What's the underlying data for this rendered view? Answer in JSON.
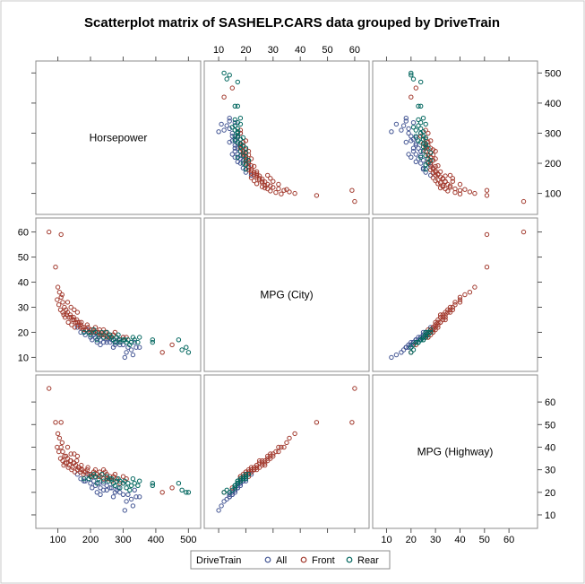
{
  "chart_data": {
    "type": "scatter-matrix",
    "title": "Scatterplot matrix of SASHELP.CARS data grouped by DriveTrain",
    "variables": [
      {
        "key": "hp",
        "label": "Horsepower",
        "range": [
          60,
          510
        ],
        "ticks": [
          100,
          200,
          300,
          400,
          500
        ]
      },
      {
        "key": "city",
        "label": "MPG (City)",
        "range": [
          8,
          62
        ],
        "ticks": [
          10,
          20,
          30,
          40,
          50,
          60
        ]
      },
      {
        "key": "hwy",
        "label": "MPG (Highway)",
        "range": [
          8,
          68
        ],
        "ticks": [
          10,
          20,
          30,
          40,
          50,
          60
        ]
      }
    ],
    "legend": {
      "title": "DriveTrain",
      "placement": "bottom-center",
      "entries": [
        {
          "name": "All",
          "color": "#445694"
        },
        {
          "name": "Front",
          "color": "#A23A2E"
        },
        {
          "name": "Rear",
          "color": "#01665E"
        }
      ]
    },
    "series": [
      {
        "name": "All",
        "color": "#445694",
        "points": [
          [
            340,
            14,
            18
          ],
          [
            300,
            15,
            19
          ],
          [
            280,
            16,
            21
          ],
          [
            265,
            17,
            22
          ],
          [
            250,
            16,
            21
          ],
          [
            230,
            17,
            22
          ],
          [
            215,
            18,
            23
          ],
          [
            200,
            18,
            24
          ],
          [
            184,
            19,
            25
          ],
          [
            170,
            20,
            26
          ],
          [
            220,
            16,
            20
          ],
          [
            325,
            13,
            17
          ],
          [
            310,
            12,
            16
          ],
          [
            275,
            15,
            20
          ],
          [
            260,
            16,
            22
          ],
          [
            240,
            18,
            24
          ],
          [
            210,
            19,
            25
          ],
          [
            195,
            20,
            26
          ],
          [
            315,
            14,
            19
          ],
          [
            290,
            15,
            20
          ],
          [
            330,
            11,
            14
          ],
          [
            305,
            10,
            12
          ],
          [
            250,
            17,
            23
          ],
          [
            225,
            18,
            24
          ],
          [
            190,
            21,
            28
          ],
          [
            350,
            14,
            18
          ],
          [
            335,
            16,
            21
          ],
          [
            160,
            22,
            28
          ],
          [
            205,
            17,
            22
          ],
          [
            270,
            14,
            18
          ],
          [
            300,
            18,
            24
          ],
          [
            180,
            20,
            25
          ],
          [
            240,
            16,
            21
          ],
          [
            285,
            17,
            22
          ],
          [
            230,
            15,
            19
          ]
        ]
      },
      {
        "name": "Front",
        "color": "#A23A2E",
        "points": [
          [
            73,
            60,
            66
          ],
          [
            93,
            46,
            51
          ],
          [
            110,
            59,
            51
          ],
          [
            100,
            38,
            46
          ],
          [
            110,
            34,
            40
          ],
          [
            105,
            36,
            44
          ],
          [
            115,
            32,
            38
          ],
          [
            120,
            30,
            36
          ],
          [
            125,
            29,
            36
          ],
          [
            130,
            28,
            35
          ],
          [
            140,
            26,
            34
          ],
          [
            150,
            25,
            33
          ],
          [
            155,
            24,
            32
          ],
          [
            160,
            24,
            30
          ],
          [
            170,
            23,
            30
          ],
          [
            180,
            22,
            29
          ],
          [
            200,
            21,
            28
          ],
          [
            210,
            21,
            29
          ],
          [
            220,
            20,
            28
          ],
          [
            230,
            19,
            27
          ],
          [
            240,
            19,
            26
          ],
          [
            250,
            18,
            26
          ],
          [
            260,
            18,
            27
          ],
          [
            270,
            19,
            27
          ],
          [
            280,
            18,
            26
          ],
          [
            300,
            18,
            27
          ],
          [
            115,
            28,
            34
          ],
          [
            127,
            27,
            33
          ],
          [
            135,
            26,
            32
          ],
          [
            145,
            25,
            31
          ],
          [
            165,
            24,
            31
          ],
          [
            175,
            22,
            30
          ],
          [
            185,
            21,
            29
          ],
          [
            195,
            20,
            28
          ],
          [
            205,
            21,
            27
          ],
          [
            215,
            22,
            30
          ],
          [
            225,
            20,
            27
          ],
          [
            235,
            19,
            28
          ],
          [
            245,
            20,
            29
          ],
          [
            255,
            19,
            26
          ],
          [
            420,
            12,
            20
          ],
          [
            450,
            15,
            22
          ],
          [
            103,
            31,
            38
          ],
          [
            108,
            29,
            35
          ],
          [
            118,
            27,
            32
          ],
          [
            132,
            24,
            31
          ],
          [
            142,
            23,
            30
          ],
          [
            152,
            22,
            29
          ],
          [
            162,
            23,
            31
          ],
          [
            172,
            24,
            32
          ],
          [
            190,
            23,
            30
          ],
          [
            210,
            20,
            29
          ],
          [
            240,
            21,
            30
          ],
          [
            265,
            18,
            25
          ],
          [
            290,
            17,
            24
          ],
          [
            98,
            33,
            40
          ],
          [
            113,
            35,
            42
          ],
          [
            122,
            26,
            33
          ],
          [
            138,
            27,
            34
          ],
          [
            148,
            26,
            33
          ],
          [
            158,
            25,
            34
          ],
          [
            168,
            22,
            29
          ],
          [
            178,
            21,
            28
          ],
          [
            192,
            22,
            31
          ],
          [
            200,
            20,
            27
          ],
          [
            228,
            21,
            29
          ],
          [
            250,
            20,
            28
          ],
          [
            275,
            20,
            28
          ],
          [
            310,
            18,
            26
          ],
          [
            130,
            32,
            40
          ],
          [
            140,
            30,
            37
          ],
          [
            150,
            29,
            37
          ],
          [
            160,
            28,
            36
          ]
        ]
      },
      {
        "name": "Rear",
        "color": "#01665E",
        "points": [
          [
            180,
            20,
            26
          ],
          [
            200,
            19,
            27
          ],
          [
            215,
            20,
            27
          ],
          [
            225,
            19,
            26
          ],
          [
            240,
            18,
            25
          ],
          [
            255,
            18,
            25
          ],
          [
            270,
            17,
            24
          ],
          [
            280,
            18,
            25
          ],
          [
            290,
            17,
            25
          ],
          [
            300,
            17,
            24
          ],
          [
            315,
            17,
            24
          ],
          [
            325,
            16,
            23
          ],
          [
            335,
            17,
            24
          ],
          [
            345,
            16,
            23
          ],
          [
            350,
            18,
            25
          ],
          [
            290,
            16,
            22
          ],
          [
            260,
            19,
            26
          ],
          [
            235,
            20,
            28
          ],
          [
            210,
            21,
            28
          ],
          [
            195,
            20,
            26
          ],
          [
            320,
            15,
            21
          ],
          [
            310,
            16,
            22
          ],
          [
            275,
            16,
            23
          ],
          [
            250,
            20,
            27
          ],
          [
            390,
            16,
            23
          ],
          [
            390,
            17,
            24
          ],
          [
            470,
            17,
            24
          ],
          [
            493,
            14,
            20
          ],
          [
            500,
            12,
            20
          ],
          [
            480,
            13,
            21
          ],
          [
            330,
            18,
            26
          ],
          [
            305,
            17,
            25
          ],
          [
            285,
            19,
            26
          ],
          [
            265,
            18,
            26
          ],
          [
            220,
            17,
            24
          ]
        ]
      }
    ]
  }
}
